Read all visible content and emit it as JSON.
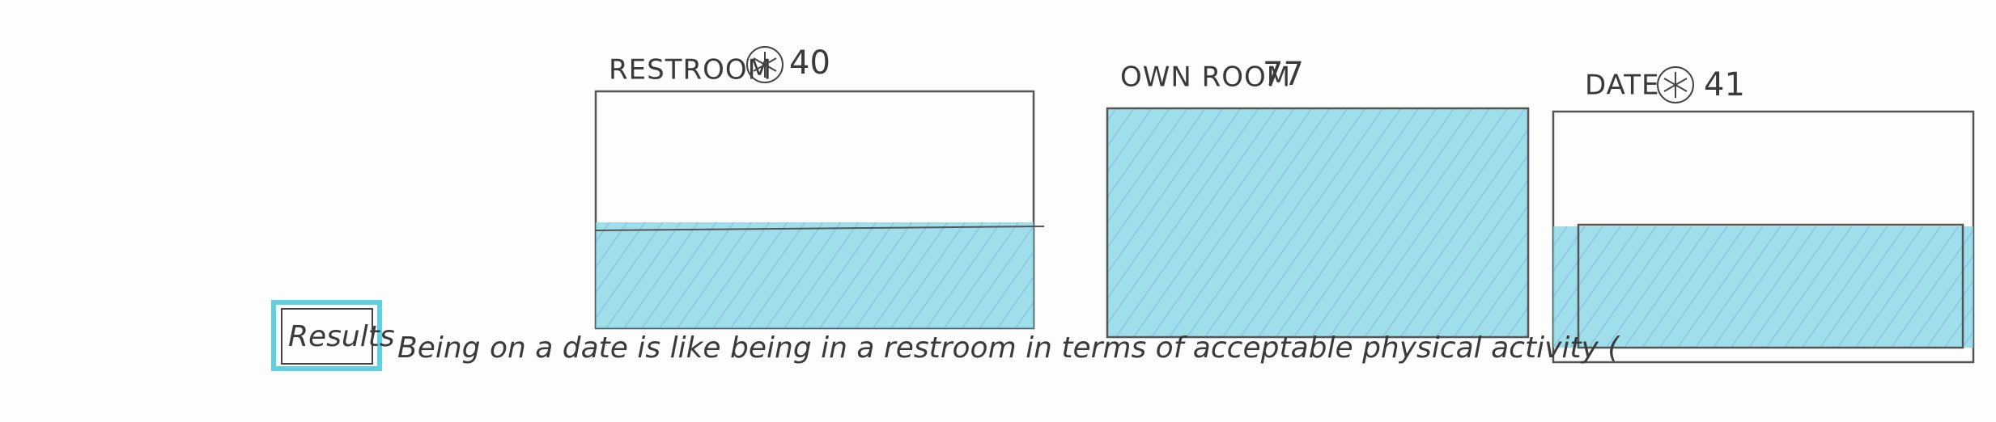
{
  "panels": [
    {
      "label": "RESTROOM",
      "value": 40
    },
    {
      "label": "OWN ROOM",
      "value": 77
    },
    {
      "label": "DATE",
      "value": 41
    }
  ],
  "results": {
    "label": "Results",
    "text": "Being on a date is like being in a restroom in terms of acceptable physical activity ("
  }
}
